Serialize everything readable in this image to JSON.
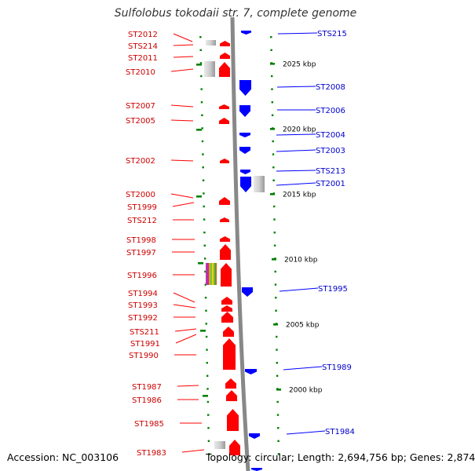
{
  "title": "Sulfolobus tokodaii str. 7, complete genome",
  "footer": {
    "accession": "Accession: NC_003106",
    "topology": "Topology: circular; Length: 2,694,756 bp; Genes: 2,874"
  },
  "colors": {
    "forward_gene": "#ff0000",
    "reverse_gene": "#0000ff",
    "forward_label": "#cc0000",
    "reverse_label": "#0000cc",
    "rna_gene": "#bbbbbb",
    "tick": "#008000",
    "backbone": "#888888"
  },
  "kbp_marks": [
    "2025 kbp",
    "2020 kbp",
    "2015 kbp",
    "2010 kbp",
    "2005 kbp",
    "2000 kbp"
  ],
  "forward_labels": [
    "ST2012",
    "STS214",
    "ST2011",
    "ST2010",
    "ST2007",
    "ST2005",
    "ST2002",
    "ST2000",
    "ST1999",
    "STS212",
    "ST1998",
    "ST1997",
    "ST1996",
    "ST1994",
    "ST1993",
    "ST1992",
    "STS211",
    "ST1991",
    "ST1990",
    "ST1987",
    "ST1986",
    "ST1985",
    "ST1983"
  ],
  "reverse_labels": [
    "STS215",
    "ST2008",
    "ST2006",
    "ST2004",
    "ST2003",
    "STS213",
    "ST2001",
    "ST1995",
    "ST1989",
    "ST1984"
  ]
}
